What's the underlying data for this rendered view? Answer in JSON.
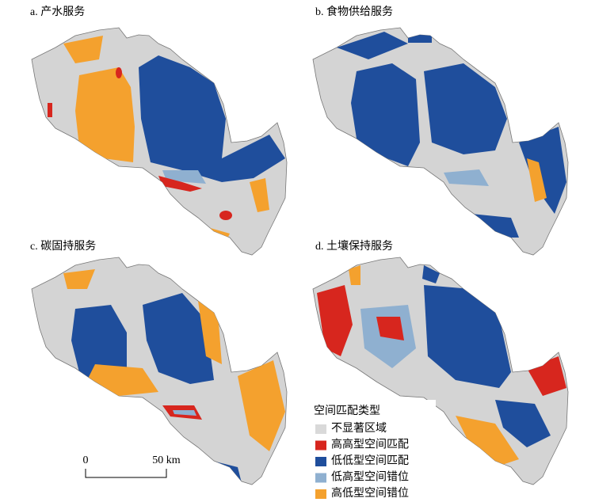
{
  "panels": [
    {
      "title": "a. 产水服务"
    },
    {
      "title": "b. 食物供给服务"
    },
    {
      "title": "c. 碳固持服务"
    },
    {
      "title": "d. 土壤保持服务"
    }
  ],
  "legend": {
    "title": "空间匹配类型",
    "items": [
      {
        "label": "不显著区域",
        "color": "#d9d9d9"
      },
      {
        "label": "高高型空间匹配",
        "color": "#d7261e"
      },
      {
        "label": "低低型空间匹配",
        "color": "#1f4e9c"
      },
      {
        "label": "低高型空间错位",
        "color": "#8fb0d0"
      },
      {
        "label": "高低型空间错位",
        "color": "#f4a12e"
      }
    ]
  },
  "scale_bar": {
    "labels": [
      "0",
      "50 km"
    ]
  }
}
